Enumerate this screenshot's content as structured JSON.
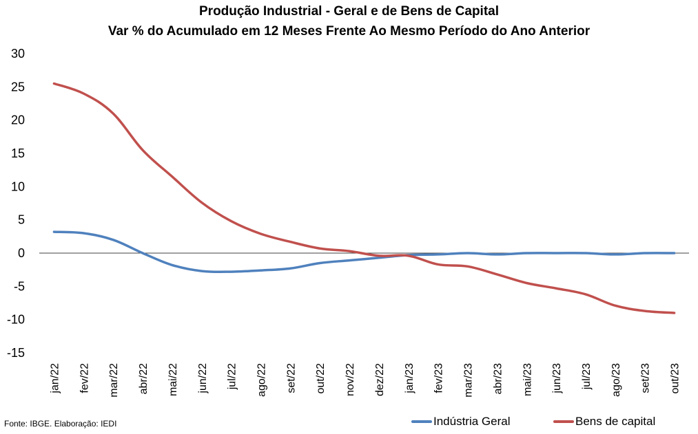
{
  "chart_data": {
    "type": "line",
    "title": "Produção Industrial - Geral e de Bens de Capital",
    "subtitle": "Var % do Acumulado em 12 Meses Frente Ao Mesmo Período do Ano Anterior",
    "xlabel": "",
    "ylabel": "",
    "ylim": [
      -15,
      30
    ],
    "yticks": [
      "30",
      "25",
      "20",
      "15",
      "10",
      "5",
      "0",
      "-5",
      "-10",
      "-15"
    ],
    "grid": false,
    "legend_position": "bottom-right",
    "categories": [
      "jan/22",
      "fev/22",
      "mar/22",
      "abr/22",
      "mai/22",
      "jun/22",
      "jul/22",
      "ago/22",
      "set/22",
      "out/22",
      "nov/22",
      "dez/22",
      "jan/23",
      "fev/23",
      "mar/23",
      "abr/23",
      "mai/23",
      "jun/23",
      "jul/23",
      "ago/23",
      "set/23",
      "out/23"
    ],
    "series": [
      {
        "name": "Indústria Geral",
        "color": "#4F81BD",
        "values": [
          3.2,
          3.0,
          2.0,
          0.0,
          -1.8,
          -2.7,
          -2.8,
          -2.6,
          -2.3,
          -1.5,
          -1.1,
          -0.7,
          -0.3,
          -0.2,
          0.0,
          -0.2,
          0.0,
          0.0,
          0.0,
          -0.2,
          0.0,
          0.0
        ]
      },
      {
        "name": "Bens de capital",
        "color": "#C0504D",
        "values": [
          25.5,
          24.0,
          21.0,
          15.5,
          11.5,
          7.6,
          4.8,
          2.9,
          1.7,
          0.7,
          0.3,
          -0.4,
          -0.4,
          -1.7,
          -2.0,
          -3.2,
          -4.5,
          -5.3,
          -6.2,
          -7.9,
          -8.7,
          -9.0
        ]
      }
    ]
  },
  "footer": {
    "source": "Fonte: IBGE. Elaboração: IEDI"
  }
}
